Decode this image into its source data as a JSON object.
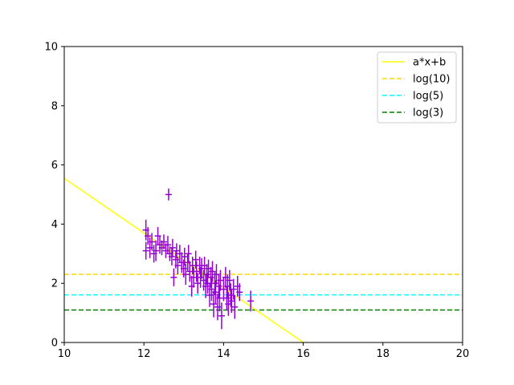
{
  "chart_data": {
    "type": "scatter",
    "title": "",
    "xlabel": "",
    "ylabel": "",
    "xlim": [
      10,
      20
    ],
    "ylim": [
      0,
      10
    ],
    "x_ticks": [
      10,
      12,
      14,
      16,
      18,
      20
    ],
    "y_ticks": [
      0,
      2,
      4,
      6,
      8,
      10
    ],
    "x_tick_labels": [
      "10",
      "12",
      "14",
      "16",
      "18",
      "20"
    ],
    "y_tick_labels": [
      "0",
      "2",
      "4",
      "6",
      "8",
      "10"
    ],
    "grid": false,
    "legend_position": "top-right",
    "fit_line": {
      "label": "a*x+b",
      "x": [
        10,
        16
      ],
      "y": [
        5.55,
        0.0
      ],
      "color": "#ffff00",
      "style": "solid"
    },
    "hlines": [
      {
        "label": "log(10)",
        "y": 2.3026,
        "color": "#ffd700",
        "style": "dashed"
      },
      {
        "label": "log(5)",
        "y": 1.6094,
        "color": "#00ffff",
        "style": "dashed"
      },
      {
        "label": "log(3)",
        "y": 1.0986,
        "color": "#008000",
        "style": "dashed"
      }
    ],
    "scatter_series": {
      "color": "#9400d3",
      "points": [
        {
          "x": 12.05,
          "y": 3.8,
          "yerr": 0.35
        },
        {
          "x": 12.1,
          "y": 3.6,
          "yerr": 0.3
        },
        {
          "x": 12.05,
          "y": 3.1,
          "yerr": 0.3
        },
        {
          "x": 12.15,
          "y": 3.2,
          "yerr": 0.35
        },
        {
          "x": 12.2,
          "y": 3.4,
          "yerr": 0.3
        },
        {
          "x": 12.25,
          "y": 3.0,
          "yerr": 0.3
        },
        {
          "x": 12.3,
          "y": 3.1,
          "yerr": 0.35
        },
        {
          "x": 12.35,
          "y": 3.6,
          "yerr": 0.3
        },
        {
          "x": 12.4,
          "y": 3.3,
          "yerr": 0.3
        },
        {
          "x": 12.45,
          "y": 3.2,
          "yerr": 0.25
        },
        {
          "x": 12.5,
          "y": 3.4,
          "yerr": 0.25
        },
        {
          "x": 12.55,
          "y": 3.1,
          "yerr": 0.25
        },
        {
          "x": 12.6,
          "y": 3.3,
          "yerr": 0.3
        },
        {
          "x": 12.62,
          "y": 5.0,
          "yerr": 0.2
        },
        {
          "x": 12.65,
          "y": 3.0,
          "yerr": 0.25
        },
        {
          "x": 12.7,
          "y": 2.9,
          "yerr": 0.3
        },
        {
          "x": 12.72,
          "y": 3.2,
          "yerr": 0.3
        },
        {
          "x": 12.75,
          "y": 2.2,
          "yerr": 0.3
        },
        {
          "x": 12.8,
          "y": 2.8,
          "yerr": 0.3
        },
        {
          "x": 12.82,
          "y": 3.1,
          "yerr": 0.25
        },
        {
          "x": 12.85,
          "y": 2.6,
          "yerr": 0.3
        },
        {
          "x": 12.9,
          "y": 3.0,
          "yerr": 0.3
        },
        {
          "x": 12.95,
          "y": 2.7,
          "yerr": 0.35
        },
        {
          "x": 13.0,
          "y": 2.5,
          "yerr": 0.3
        },
        {
          "x": 13.02,
          "y": 2.9,
          "yerr": 0.3
        },
        {
          "x": 13.05,
          "y": 2.3,
          "yerr": 0.35
        },
        {
          "x": 13.1,
          "y": 2.7,
          "yerr": 0.3
        },
        {
          "x": 13.12,
          "y": 3.0,
          "yerr": 0.3
        },
        {
          "x": 13.15,
          "y": 2.4,
          "yerr": 0.35
        },
        {
          "x": 13.2,
          "y": 1.9,
          "yerr": 0.35
        },
        {
          "x": 13.22,
          "y": 2.6,
          "yerr": 0.3
        },
        {
          "x": 13.25,
          "y": 2.2,
          "yerr": 0.35
        },
        {
          "x": 13.3,
          "y": 2.8,
          "yerr": 0.3
        },
        {
          "x": 13.32,
          "y": 2.4,
          "yerr": 0.35
        },
        {
          "x": 13.35,
          "y": 2.0,
          "yerr": 0.35
        },
        {
          "x": 13.4,
          "y": 2.6,
          "yerr": 0.3
        },
        {
          "x": 13.42,
          "y": 2.2,
          "yerr": 0.35
        },
        {
          "x": 13.45,
          "y": 2.5,
          "yerr": 0.35
        },
        {
          "x": 13.5,
          "y": 2.1,
          "yerr": 0.35
        },
        {
          "x": 13.52,
          "y": 2.6,
          "yerr": 0.3
        },
        {
          "x": 13.55,
          "y": 1.9,
          "yerr": 0.4
        },
        {
          "x": 13.58,
          "y": 2.3,
          "yerr": 0.35
        },
        {
          "x": 13.6,
          "y": 2.0,
          "yerr": 0.35
        },
        {
          "x": 13.62,
          "y": 2.5,
          "yerr": 0.3
        },
        {
          "x": 13.65,
          "y": 1.6,
          "yerr": 0.4
        },
        {
          "x": 13.68,
          "y": 2.2,
          "yerr": 0.35
        },
        {
          "x": 13.7,
          "y": 1.8,
          "yerr": 0.4
        },
        {
          "x": 13.72,
          "y": 2.4,
          "yerr": 0.35
        },
        {
          "x": 13.75,
          "y": 1.3,
          "yerr": 0.45
        },
        {
          "x": 13.78,
          "y": 2.0,
          "yerr": 0.4
        },
        {
          "x": 13.8,
          "y": 1.7,
          "yerr": 0.4
        },
        {
          "x": 13.82,
          "y": 2.3,
          "yerr": 0.35
        },
        {
          "x": 13.85,
          "y": 1.2,
          "yerr": 0.45
        },
        {
          "x": 13.88,
          "y": 1.9,
          "yerr": 0.4
        },
        {
          "x": 13.9,
          "y": 1.5,
          "yerr": 0.45
        },
        {
          "x": 13.92,
          "y": 2.1,
          "yerr": 0.35
        },
        {
          "x": 13.95,
          "y": 0.9,
          "yerr": 0.45
        },
        {
          "x": 14.0,
          "y": 1.8,
          "yerr": 0.4
        },
        {
          "x": 14.05,
          "y": 2.2,
          "yerr": 0.35
        },
        {
          "x": 14.08,
          "y": 1.5,
          "yerr": 0.4
        },
        {
          "x": 14.1,
          "y": 1.9,
          "yerr": 0.4
        },
        {
          "x": 14.12,
          "y": 1.3,
          "yerr": 0.4
        },
        {
          "x": 14.15,
          "y": 2.1,
          "yerr": 0.35
        },
        {
          "x": 14.18,
          "y": 1.6,
          "yerr": 0.4
        },
        {
          "x": 14.2,
          "y": 1.4,
          "yerr": 0.4
        },
        {
          "x": 14.25,
          "y": 1.8,
          "yerr": 0.35
        },
        {
          "x": 14.28,
          "y": 1.2,
          "yerr": 0.4
        },
        {
          "x": 14.35,
          "y": 1.9,
          "yerr": 0.35
        },
        {
          "x": 14.4,
          "y": 1.7,
          "yerr": 0.3
        },
        {
          "x": 14.68,
          "y": 1.4,
          "yerr": 0.35
        }
      ]
    }
  }
}
